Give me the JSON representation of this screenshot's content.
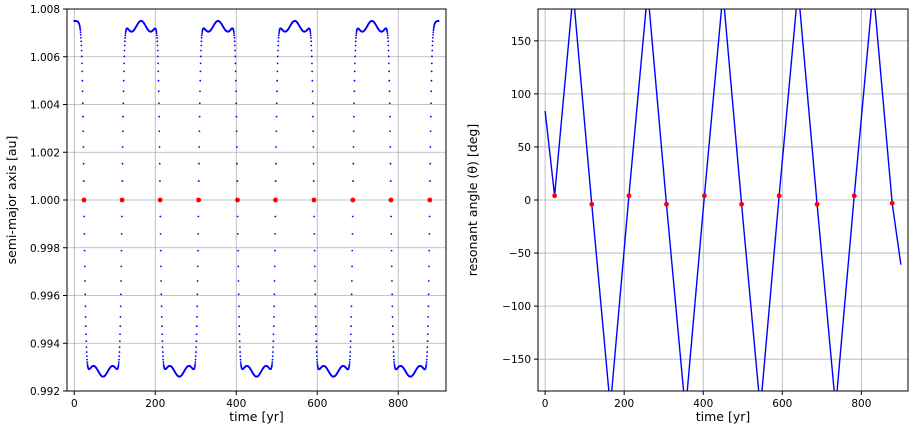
{
  "chart_data": [
    {
      "type": "scatter",
      "xlabel": "time [yr]",
      "ylabel": "semi-major axis [au]",
      "xlim": [
        -18,
        918
      ],
      "ylim": [
        0.992,
        1.008
      ],
      "xticks": [
        0,
        200,
        400,
        600,
        800
      ],
      "xtick_labels": [
        "0",
        "200",
        "400",
        "600",
        "800"
      ],
      "yticks": [
        0.992,
        0.994,
        0.996,
        0.998,
        1.0,
        1.002,
        1.004,
        1.006,
        1.008
      ],
      "ytick_labels": [
        "0.992",
        "0.994",
        "0.996",
        "0.998",
        "1.000",
        "1.002",
        "1.004",
        "1.006",
        "1.008"
      ],
      "grid": true,
      "series": [
        {
          "color": "#0000ff",
          "a_high": 1.0075,
          "a_low": 0.9926,
          "transitions": [
            24,
            118,
            212,
            307,
            403,
            497,
            592,
            688,
            782,
            878
          ],
          "t_start": 0,
          "t_end": 900
        },
        {
          "color": "#ff0000",
          "x": [
            24,
            118,
            212,
            307,
            403,
            497,
            592,
            688,
            782,
            878
          ],
          "y": [
            1.0,
            1.0,
            1.0,
            1.0,
            1.0,
            1.0,
            1.0,
            1.0,
            1.0,
            1.0
          ]
        }
      ]
    },
    {
      "type": "line",
      "xlabel": "time [yr]",
      "ylabel": "resonant angle (θ) [deg]",
      "xlim": [
        -18,
        918
      ],
      "ylim": [
        -180,
        180
      ],
      "xticks": [
        0,
        200,
        400,
        600,
        800
      ],
      "xtick_labels": [
        "0",
        "200",
        "400",
        "600",
        "800"
      ],
      "yticks": [
        -150,
        -100,
        -50,
        0,
        50,
        100,
        150
      ],
      "ytick_labels": [
        "−150",
        "−100",
        "−50",
        "0",
        "50",
        "100",
        "150"
      ],
      "grid": true,
      "series": [
        {
          "color": "#0000ff",
          "start": [
            0,
            84
          ],
          "end": [
            900,
            -61
          ],
          "slope_deg_per_yr": 4.07
        },
        {
          "color": "#ff0000",
          "x": [
            24,
            118,
            212,
            307,
            403,
            497,
            592,
            688,
            782,
            878
          ],
          "y": [
            4,
            -4,
            4,
            -4,
            4,
            -4,
            4,
            -4,
            4,
            -3
          ]
        }
      ]
    }
  ]
}
